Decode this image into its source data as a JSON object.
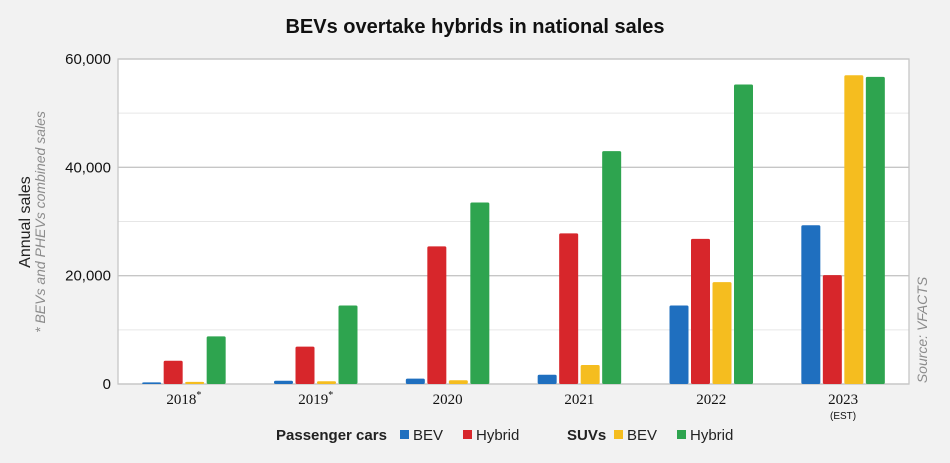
{
  "chart_data": {
    "type": "bar",
    "title": "BEVs overtake hybrids in national sales",
    "ylabel": "Annual sales",
    "ylabel_note": "* BEVs and PHEVs combined sales",
    "source": "Source: VFACTS",
    "categories": [
      "2018",
      "2019",
      "2020",
      "2021",
      "2022",
      "2023"
    ],
    "category_marks": [
      "*",
      "*",
      "",
      "",
      "",
      ""
    ],
    "category_sublabels": [
      "",
      "",
      "",
      "",
      "",
      "(EST)"
    ],
    "ylim": [
      0,
      60000
    ],
    "yticks": [
      0,
      20000,
      40000,
      60000
    ],
    "ytick_labels": [
      "0",
      "20,000",
      "40,000",
      "60,000"
    ],
    "grid": true,
    "legend_position": "bottom",
    "legend_groups": [
      {
        "label": "Passenger cars",
        "entries": [
          "BEV",
          "Hybrid"
        ]
      },
      {
        "label": "SUVs",
        "entries": [
          "BEV",
          "Hybrid"
        ]
      }
    ],
    "series": [
      {
        "group": "Passenger cars",
        "name": "BEV",
        "color": "#1f6fbf",
        "values": [
          300,
          600,
          1000,
          1700,
          14500,
          29300
        ]
      },
      {
        "group": "Passenger cars",
        "name": "Hybrid",
        "color": "#d7262b",
        "values": [
          4300,
          6900,
          25400,
          27800,
          26800,
          20100
        ]
      },
      {
        "group": "SUVs",
        "name": "BEV",
        "color": "#f5bd1f",
        "values": [
          400,
          500,
          700,
          3500,
          18800,
          57000
        ]
      },
      {
        "group": "SUVs",
        "name": "Hybrid",
        "color": "#2ea44f",
        "values": [
          8800,
          14500,
          33500,
          43000,
          55300,
          56700
        ]
      }
    ]
  }
}
